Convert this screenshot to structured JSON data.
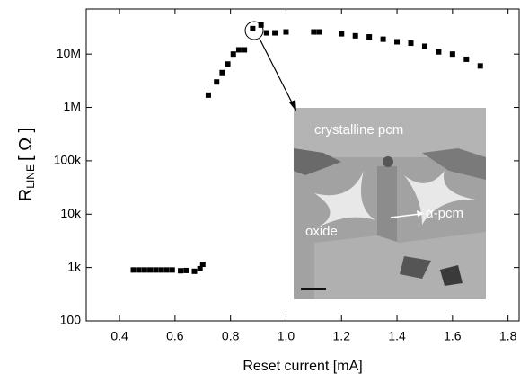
{
  "chart_data": {
    "type": "scatter",
    "xlabel": "Reset current [mA]",
    "ylabel": {
      "main": "R",
      "subscript": "LINE",
      "unit": "[ Ω ]"
    },
    "x": [
      0.45,
      0.47,
      0.49,
      0.51,
      0.53,
      0.55,
      0.57,
      0.59,
      0.62,
      0.64,
      0.67,
      0.69,
      0.7,
      0.72,
      0.75,
      0.77,
      0.79,
      0.81,
      0.83,
      0.85,
      0.88,
      0.91,
      0.93,
      0.96,
      1.0,
      1.1,
      1.12,
      1.2,
      1.25,
      1.3,
      1.35,
      1.4,
      1.45,
      1.5,
      1.55,
      1.6,
      1.65,
      1.7
    ],
    "values": [
      900,
      900,
      900,
      900,
      900,
      900,
      900,
      900,
      870,
      880,
      850,
      950,
      1150,
      1700000,
      3000000,
      4500000,
      6500000,
      10000000,
      12000000,
      12000000,
      30000000,
      35000000,
      25000000,
      25000000,
      26000000,
      26000000,
      26000000,
      24000000,
      22000000,
      21000000,
      19000000,
      17000000,
      16000000,
      14000000,
      11000000,
      10000000,
      8000000,
      6000000
    ],
    "color": "#000000",
    "log_y": true,
    "xlim": [
      0.28,
      1.84
    ],
    "ylim": [
      100,
      70000000
    ],
    "xticks": [
      0.4,
      0.6,
      0.8,
      {
        "value": 1,
        "label": "1.0"
      },
      1.2,
      1.4,
      1.6,
      1.8
    ],
    "yticks": [
      100,
      {
        "value": 1000,
        "label": "1k"
      },
      {
        "value": 10000,
        "label": "10k"
      },
      {
        "value": 100000,
        "label": "100k"
      },
      {
        "value": 1000000,
        "label": "1M"
      },
      {
        "value": 10000000,
        "label": "10M"
      }
    ],
    "annotations": [
      "crystalline pcm",
      "oxide",
      "α-pcm"
    ]
  }
}
